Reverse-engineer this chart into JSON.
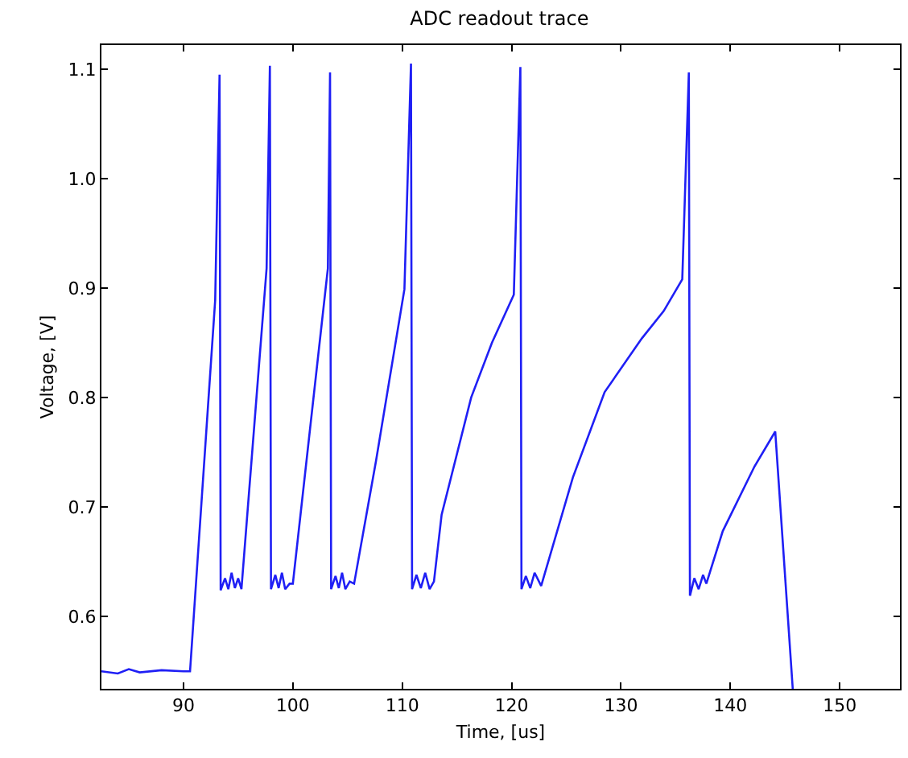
{
  "chart_data": {
    "type": "line",
    "title": "ADC readout trace",
    "xlabel": "Time, [us]",
    "ylabel": "Voltage, [V]",
    "xlim": [
      82.5,
      155.5
    ],
    "xticks": [
      90,
      100,
      110,
      120,
      130,
      140,
      150
    ],
    "ylim": [
      0.534,
      1.122
    ],
    "yticks": [
      0.6,
      0.7,
      0.8,
      0.9,
      {
        "value": 1,
        "label": "1.0"
      },
      1.1
    ],
    "series": [
      {
        "color": "#1f1ff5",
        "x": [
          82.5,
          84,
          85,
          86,
          88,
          90,
          90.6,
          92.9,
          93.3,
          93.4,
          93.8,
          94.1,
          94.4,
          94.7,
          95.0,
          95.3,
          97.6,
          97.9,
          98.0,
          98.4,
          98.7,
          99.0,
          99.3,
          99.7,
          100.0,
          103.2,
          103.4,
          103.5,
          103.9,
          104.2,
          104.5,
          104.8,
          105.2,
          105.6,
          107.6,
          110.2,
          110.8,
          110.9,
          111.3,
          111.7,
          112.1,
          112.5,
          112.9,
          113.6,
          116.3,
          118.2,
          120.2,
          120.8,
          120.9,
          121.3,
          121.7,
          122.1,
          122.7,
          125.6,
          128.5,
          131.9,
          133.9,
          135.6,
          136.2,
          136.3,
          136.7,
          137.1,
          137.5,
          137.8,
          139.3,
          142.2,
          144.1,
          145.7
        ],
        "values": [
          0.55,
          0.548,
          0.552,
          0.549,
          0.551,
          0.55,
          0.55,
          0.889,
          1.095,
          0.624,
          0.635,
          0.625,
          0.64,
          0.626,
          0.635,
          0.625,
          0.918,
          1.103,
          0.625,
          0.638,
          0.626,
          0.64,
          0.625,
          0.63,
          0.63,
          0.918,
          1.097,
          0.625,
          0.637,
          0.626,
          0.64,
          0.625,
          0.632,
          0.63,
          0.742,
          0.899,
          1.105,
          0.625,
          0.638,
          0.626,
          0.64,
          0.625,
          0.632,
          0.693,
          0.8,
          0.85,
          0.894,
          1.102,
          0.625,
          0.637,
          0.626,
          0.64,
          0.628,
          0.727,
          0.805,
          0.854,
          0.879,
          0.908,
          1.097,
          0.619,
          0.635,
          0.625,
          0.638,
          0.63,
          0.678,
          0.737,
          0.769,
          0.534
        ]
      }
    ]
  }
}
